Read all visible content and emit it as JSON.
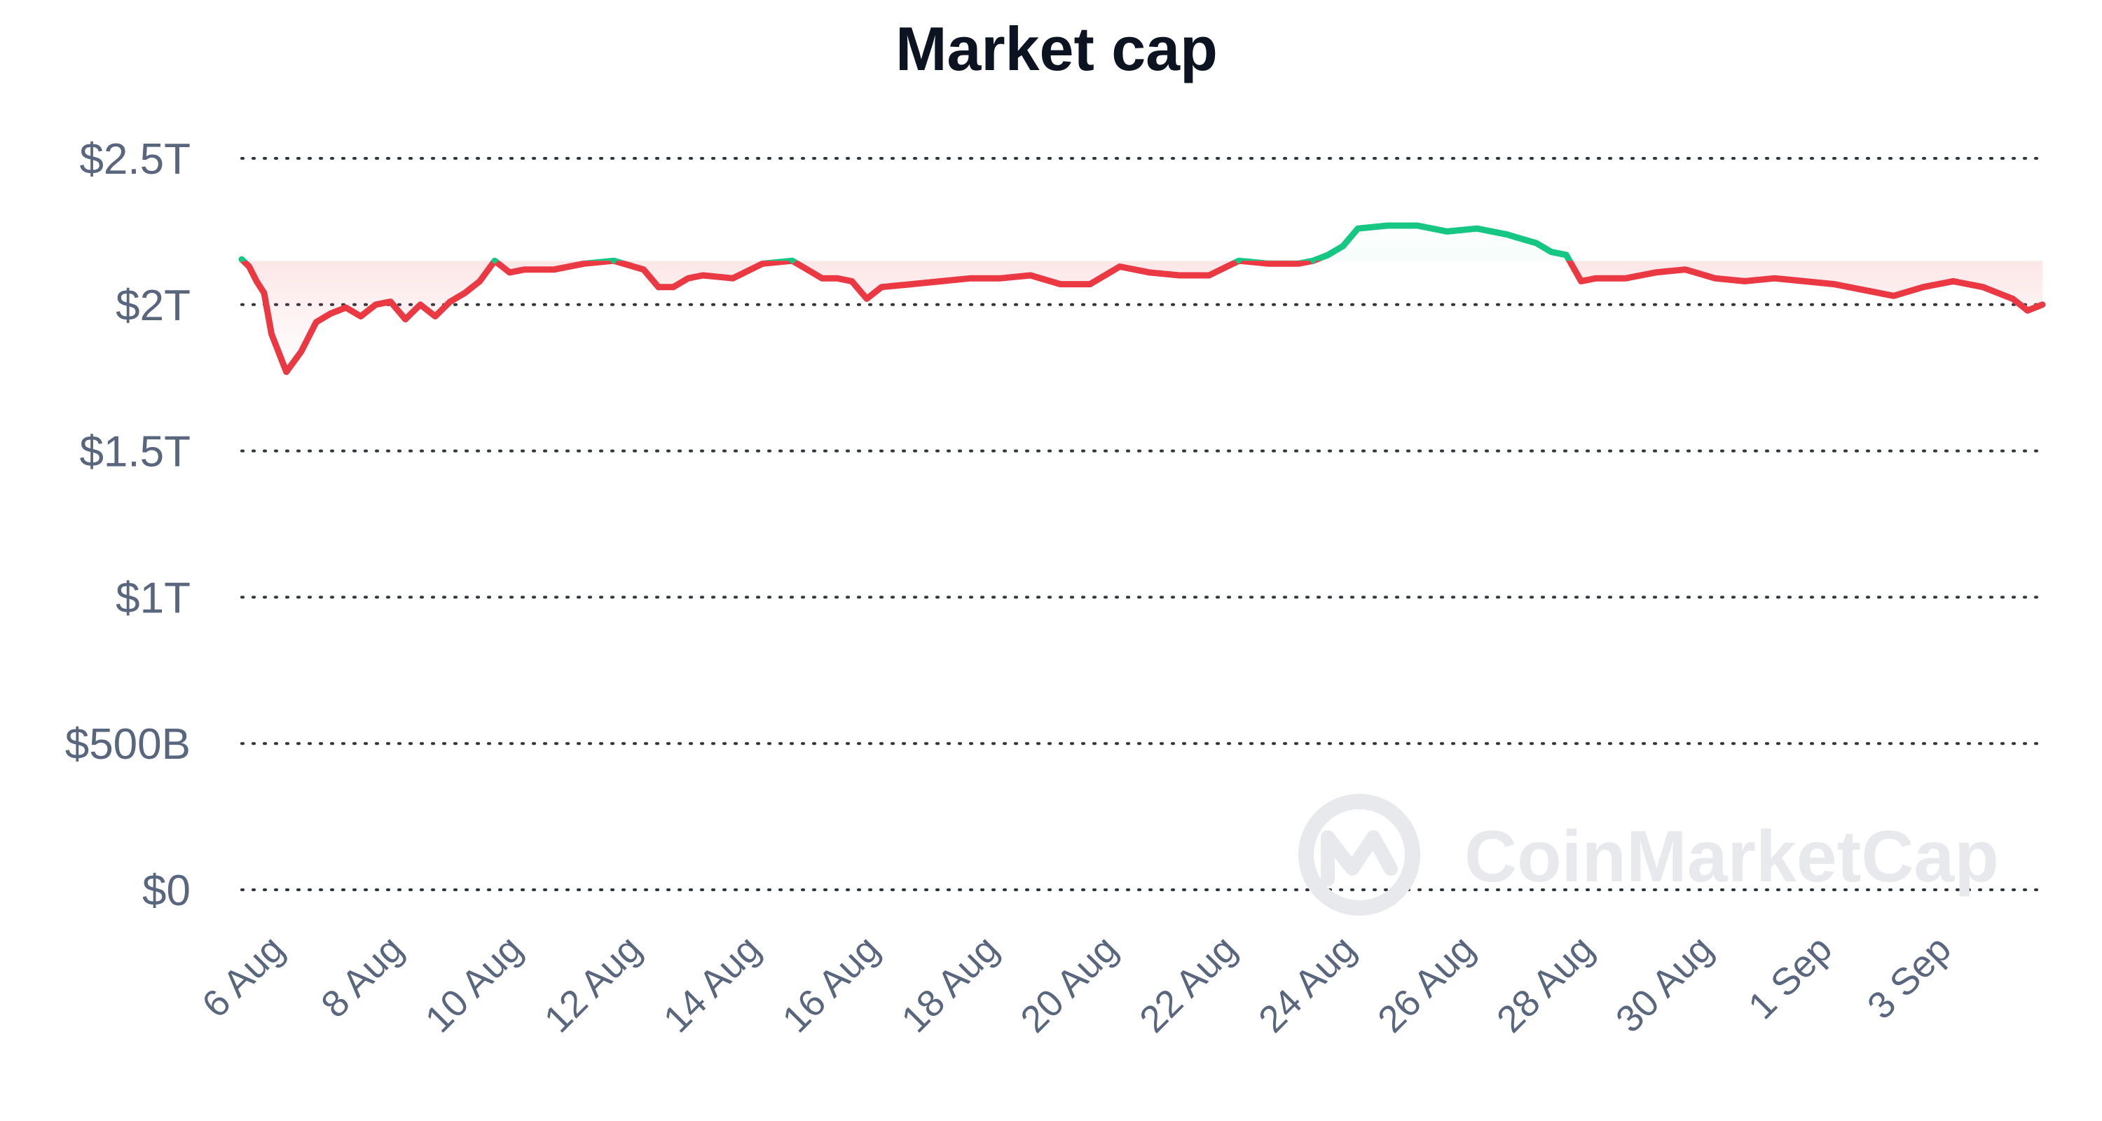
{
  "chart_data": {
    "type": "line",
    "title": "Market cap",
    "xlabel": "",
    "ylabel": "",
    "y_ticks": [
      "$0",
      "$500B",
      "$1T",
      "$1.5T",
      "$2T",
      "$2.5T"
    ],
    "y_tick_values": [
      0,
      500,
      1000,
      1500,
      2000,
      2500
    ],
    "ylim": [
      0,
      2500
    ],
    "y_unit": "billion USD",
    "x_ticks": [
      "6 Aug",
      "8 Aug",
      "10 Aug",
      "12 Aug",
      "14 Aug",
      "16 Aug",
      "18 Aug",
      "20 Aug",
      "22 Aug",
      "24 Aug",
      "26 Aug",
      "28 Aug",
      "30 Aug",
      "1 Sep",
      "3 Sep"
    ],
    "x_tick_dates": [
      "2024-08-06",
      "2024-08-08",
      "2024-08-10",
      "2024-08-12",
      "2024-08-14",
      "2024-08-16",
      "2024-08-18",
      "2024-08-20",
      "2024-08-22",
      "2024-08-24",
      "2024-08-26",
      "2024-08-28",
      "2024-08-30",
      "2024-09-01",
      "2024-09-03"
    ],
    "xlim": [
      "2024-08-05 06:00",
      "2024-09-04 12:00"
    ],
    "grid": true,
    "legend": "none",
    "baseline": 2150,
    "colors": {
      "above_baseline": "#16c784",
      "below_baseline": "#ea3943",
      "title": "#0d1421",
      "axis_text": "#58667e",
      "grid": "#2f3541"
    },
    "watermark": "CoinMarketCap",
    "series": [
      {
        "x": [
          "2024-08-05 06:00",
          "2024-08-05 09:00",
          "2024-08-05 12:00",
          "2024-08-05 15:00",
          "2024-08-05 18:00",
          "2024-08-06 00:00",
          "2024-08-06 06:00",
          "2024-08-06 12:00",
          "2024-08-06 18:00",
          "2024-08-07 00:00",
          "2024-08-07 06:00",
          "2024-08-07 12:00",
          "2024-08-07 18:00",
          "2024-08-08 00:00",
          "2024-08-08 06:00",
          "2024-08-08 12:00",
          "2024-08-08 18:00",
          "2024-08-09 00:00",
          "2024-08-09 06:00",
          "2024-08-09 12:00",
          "2024-08-09 18:00",
          "2024-08-10 00:00",
          "2024-08-10 12:00",
          "2024-08-11 00:00",
          "2024-08-11 12:00",
          "2024-08-12 00:00",
          "2024-08-12 06:00",
          "2024-08-12 12:00",
          "2024-08-12 18:00",
          "2024-08-13 00:00",
          "2024-08-13 12:00",
          "2024-08-14 00:00",
          "2024-08-14 12:00",
          "2024-08-15 00:00",
          "2024-08-15 06:00",
          "2024-08-15 12:00",
          "2024-08-15 18:00",
          "2024-08-16 00:00",
          "2024-08-16 12:00",
          "2024-08-17 00:00",
          "2024-08-17 12:00",
          "2024-08-18 00:00",
          "2024-08-18 12:00",
          "2024-08-19 00:00",
          "2024-08-19 12:00",
          "2024-08-20 00:00",
          "2024-08-20 12:00",
          "2024-08-21 00:00",
          "2024-08-21 12:00",
          "2024-08-22 00:00",
          "2024-08-22 12:00",
          "2024-08-23 00:00",
          "2024-08-23 06:00",
          "2024-08-23 12:00",
          "2024-08-23 18:00",
          "2024-08-24 00:00",
          "2024-08-24 12:00",
          "2024-08-25 00:00",
          "2024-08-25 12:00",
          "2024-08-26 00:00",
          "2024-08-26 12:00",
          "2024-08-27 00:00",
          "2024-08-27 06:00",
          "2024-08-27 12:00",
          "2024-08-27 18:00",
          "2024-08-28 00:00",
          "2024-08-28 12:00",
          "2024-08-29 00:00",
          "2024-08-29 12:00",
          "2024-08-30 00:00",
          "2024-08-30 12:00",
          "2024-08-31 00:00",
          "2024-08-31 12:00",
          "2024-09-01 00:00",
          "2024-09-01 12:00",
          "2024-09-02 00:00",
          "2024-09-02 12:00",
          "2024-09-03 00:00",
          "2024-09-03 12:00",
          "2024-09-04 00:00",
          "2024-09-04 06:00",
          "2024-09-04 12:00"
        ],
        "values": [
          2155,
          2130,
          2080,
          2040,
          1900,
          1770,
          1840,
          1940,
          1970,
          1990,
          1960,
          2000,
          2010,
          1950,
          2000,
          1960,
          2010,
          2040,
          2080,
          2150,
          2110,
          2120,
          2120,
          2140,
          2150,
          2120,
          2060,
          2060,
          2090,
          2100,
          2090,
          2140,
          2150,
          2090,
          2090,
          2080,
          2020,
          2060,
          2070,
          2080,
          2090,
          2090,
          2100,
          2070,
          2070,
          2130,
          2110,
          2100,
          2100,
          2150,
          2140,
          2140,
          2150,
          2170,
          2200,
          2260,
          2270,
          2270,
          2250,
          2260,
          2240,
          2210,
          2180,
          2170,
          2080,
          2090,
          2090,
          2110,
          2120,
          2090,
          2080,
          2090,
          2080,
          2070,
          2050,
          2030,
          2060,
          2080,
          2060,
          2020,
          1980,
          2000
        ]
      }
    ]
  }
}
